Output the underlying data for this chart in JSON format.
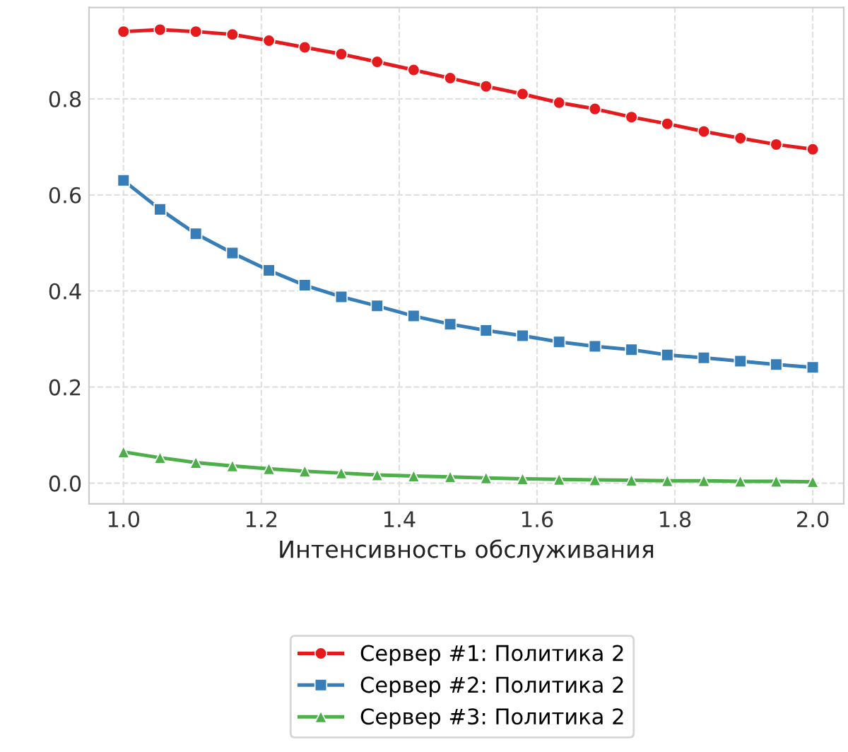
{
  "chart_data": {
    "type": "line",
    "xlabel": "Интенсивность обслуживания",
    "x": [
      1.0,
      1.053,
      1.105,
      1.158,
      1.211,
      1.263,
      1.316,
      1.368,
      1.421,
      1.474,
      1.526,
      1.579,
      1.632,
      1.684,
      1.737,
      1.789,
      1.842,
      1.895,
      1.947,
      2.0
    ],
    "series": [
      {
        "name": "Сервер #1: Политика 2",
        "color": "#e41a1c",
        "marker": "circle",
        "values": [
          0.94,
          0.944,
          0.94,
          0.934,
          0.921,
          0.907,
          0.893,
          0.877,
          0.86,
          0.843,
          0.826,
          0.81,
          0.792,
          0.779,
          0.762,
          0.748,
          0.732,
          0.718,
          0.705,
          0.695
        ]
      },
      {
        "name": "Сервер #2: Политика 2",
        "color": "#377eb8",
        "marker": "square",
        "values": [
          0.63,
          0.57,
          0.519,
          0.479,
          0.443,
          0.412,
          0.388,
          0.369,
          0.348,
          0.331,
          0.318,
          0.307,
          0.294,
          0.285,
          0.278,
          0.267,
          0.261,
          0.254,
          0.247,
          0.241
        ]
      },
      {
        "name": "Сервер #3: Политика 2",
        "color": "#4daf4a",
        "marker": "triangle",
        "values": [
          0.065,
          0.053,
          0.043,
          0.036,
          0.03,
          0.025,
          0.021,
          0.017,
          0.015,
          0.013,
          0.011,
          0.009,
          0.008,
          0.007,
          0.006,
          0.005,
          0.005,
          0.004,
          0.004,
          0.003
        ]
      }
    ],
    "xlim": [
      0.95,
      2.045
    ],
    "xticks": [
      {
        "value": 1.0,
        "label": "1.0"
      },
      1.2,
      1.4,
      1.6,
      1.8,
      {
        "value": 2.0,
        "label": "2.0"
      }
    ],
    "ylim": [
      -0.043,
      0.99
    ],
    "yticks": [
      {
        "value": 0.0,
        "label": "0.0"
      },
      0.2,
      0.4,
      0.6,
      0.8
    ],
    "grid": true,
    "legend": "bottom",
    "line_style": "solid"
  }
}
